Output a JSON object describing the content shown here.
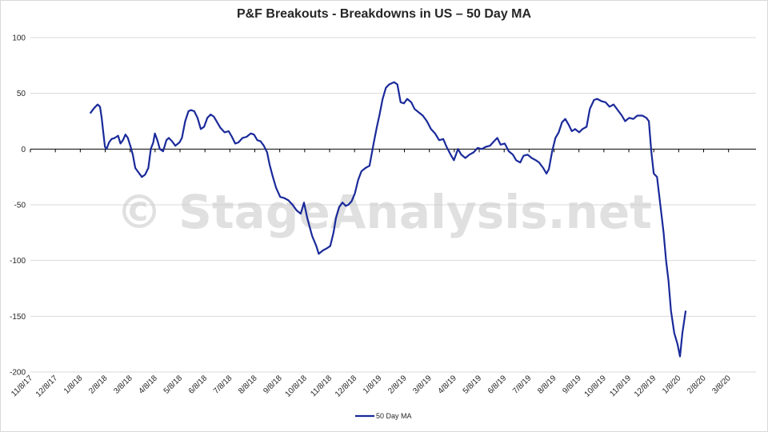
{
  "watermark": "© StageAnalysis.net",
  "colors": {
    "line": "#1a2a9a",
    "grid": "#d9d9d9",
    "zero_axis": "#000000"
  },
  "chart_data": {
    "type": "line",
    "title": "P&F Breakouts - Breakdowns in US – 50 Day MA",
    "xlabel": "",
    "ylabel": "",
    "ylim": [
      -200,
      100
    ],
    "yticks": [
      100,
      50,
      0,
      -50,
      -100,
      -150,
      -200
    ],
    "xticks": [
      "11/8/17",
      "12/8/17",
      "1/8/18",
      "2/8/18",
      "3/8/18",
      "4/8/18",
      "5/8/18",
      "6/8/18",
      "7/8/18",
      "8/8/18",
      "9/8/18",
      "10/8/18",
      "11/8/18",
      "12/8/18",
      "1/8/19",
      "2/8/19",
      "3/8/19",
      "4/8/19",
      "5/8/19",
      "6/8/19",
      "7/8/19",
      "8/8/19",
      "9/8/19",
      "10/8/19",
      "11/8/19",
      "12/8/19",
      "1/8/20",
      "2/8/20",
      "3/8/20"
    ],
    "grid": true,
    "legend": "bottom",
    "series": [
      {
        "name": "50 Day MA",
        "points": [
          [
            "2018-01-20",
            32
          ],
          [
            "2018-01-25",
            37
          ],
          [
            "2018-01-29",
            40
          ],
          [
            "2018-02-01",
            38
          ],
          [
            "2018-02-03",
            28
          ],
          [
            "2018-02-05",
            15
          ],
          [
            "2018-02-07",
            2
          ],
          [
            "2018-02-09",
            0
          ],
          [
            "2018-02-12",
            6
          ],
          [
            "2018-02-15",
            9
          ],
          [
            "2018-02-19",
            10
          ],
          [
            "2018-02-23",
            12
          ],
          [
            "2018-02-26",
            5
          ],
          [
            "2018-03-01",
            8
          ],
          [
            "2018-03-04",
            13
          ],
          [
            "2018-03-07",
            10
          ],
          [
            "2018-03-10",
            3
          ],
          [
            "2018-03-13",
            -5
          ],
          [
            "2018-03-16",
            -17
          ],
          [
            "2018-03-20",
            -21
          ],
          [
            "2018-03-24",
            -25
          ],
          [
            "2018-03-28",
            -23
          ],
          [
            "2018-04-01",
            -17
          ],
          [
            "2018-04-04",
            0
          ],
          [
            "2018-04-07",
            6
          ],
          [
            "2018-04-09",
            14
          ],
          [
            "2018-04-12",
            8
          ],
          [
            "2018-04-15",
            0
          ],
          [
            "2018-04-19",
            -2
          ],
          [
            "2018-04-23",
            8
          ],
          [
            "2018-04-26",
            10
          ],
          [
            "2018-04-30",
            7
          ],
          [
            "2018-05-04",
            3
          ],
          [
            "2018-05-09",
            6
          ],
          [
            "2018-05-12",
            10
          ],
          [
            "2018-05-16",
            25
          ],
          [
            "2018-05-20",
            34
          ],
          [
            "2018-05-23",
            35
          ],
          [
            "2018-05-27",
            34
          ],
          [
            "2018-05-31",
            28
          ],
          [
            "2018-06-04",
            18
          ],
          [
            "2018-06-08",
            20
          ],
          [
            "2018-06-12",
            28
          ],
          [
            "2018-06-16",
            31
          ],
          [
            "2018-06-20",
            29
          ],
          [
            "2018-06-24",
            24
          ],
          [
            "2018-06-28",
            19
          ],
          [
            "2018-07-03",
            15
          ],
          [
            "2018-07-08",
            16
          ],
          [
            "2018-07-12",
            11
          ],
          [
            "2018-07-16",
            5
          ],
          [
            "2018-07-20",
            6
          ],
          [
            "2018-07-25",
            10
          ],
          [
            "2018-07-30",
            11
          ],
          [
            "2018-08-04",
            14
          ],
          [
            "2018-08-08",
            13
          ],
          [
            "2018-08-12",
            8
          ],
          [
            "2018-08-16",
            7
          ],
          [
            "2018-08-20",
            3
          ],
          [
            "2018-08-24",
            -3
          ],
          [
            "2018-08-27",
            -14
          ],
          [
            "2018-08-31",
            -25
          ],
          [
            "2018-09-04",
            -35
          ],
          [
            "2018-09-09",
            -43
          ],
          [
            "2018-09-14",
            -44
          ],
          [
            "2018-09-19",
            -46
          ],
          [
            "2018-09-24",
            -50
          ],
          [
            "2018-09-29",
            -55
          ],
          [
            "2018-10-04",
            -58
          ],
          [
            "2018-10-08",
            -48
          ],
          [
            "2018-10-12",
            -62
          ],
          [
            "2018-10-18",
            -78
          ],
          [
            "2018-10-23",
            -87
          ],
          [
            "2018-10-26",
            -94
          ],
          [
            "2018-10-31",
            -91
          ],
          [
            "2018-11-05",
            -89
          ],
          [
            "2018-11-09",
            -87
          ],
          [
            "2018-11-13",
            -75
          ],
          [
            "2018-11-16",
            -62
          ],
          [
            "2018-11-20",
            -52
          ],
          [
            "2018-11-24",
            -48
          ],
          [
            "2018-11-28",
            -51
          ],
          [
            "2018-12-01",
            -50
          ],
          [
            "2018-12-05",
            -47
          ],
          [
            "2018-12-09",
            -40
          ],
          [
            "2018-12-13",
            -28
          ],
          [
            "2018-12-17",
            -20
          ],
          [
            "2018-12-22",
            -17
          ],
          [
            "2018-12-27",
            -15
          ],
          [
            "2019-01-01",
            5
          ],
          [
            "2019-01-05",
            20
          ],
          [
            "2019-01-08",
            30
          ],
          [
            "2019-01-12",
            45
          ],
          [
            "2019-01-16",
            55
          ],
          [
            "2019-01-20",
            58
          ],
          [
            "2019-01-26",
            60
          ],
          [
            "2019-01-30",
            58
          ],
          [
            "2019-02-03",
            42
          ],
          [
            "2019-02-07",
            41
          ],
          [
            "2019-02-11",
            45
          ],
          [
            "2019-02-16",
            42
          ],
          [
            "2019-02-20",
            36
          ],
          [
            "2019-02-25",
            33
          ],
          [
            "2019-03-02",
            30
          ],
          [
            "2019-03-07",
            25
          ],
          [
            "2019-03-12",
            18
          ],
          [
            "2019-03-17",
            14
          ],
          [
            "2019-03-22",
            8
          ],
          [
            "2019-03-27",
            9
          ],
          [
            "2019-03-31",
            2
          ],
          [
            "2019-04-05",
            -5
          ],
          [
            "2019-04-09",
            -10
          ],
          [
            "2019-04-14",
            0
          ],
          [
            "2019-04-18",
            -5
          ],
          [
            "2019-04-23",
            -8
          ],
          [
            "2019-04-28",
            -5
          ],
          [
            "2019-05-03",
            -3
          ],
          [
            "2019-05-08",
            1
          ],
          [
            "2019-05-13",
            0
          ],
          [
            "2019-05-18",
            2
          ],
          [
            "2019-05-23",
            3
          ],
          [
            "2019-05-28",
            7
          ],
          [
            "2019-06-01",
            10
          ],
          [
            "2019-06-05",
            4
          ],
          [
            "2019-06-10",
            5
          ],
          [
            "2019-06-15",
            -2
          ],
          [
            "2019-06-20",
            -5
          ],
          [
            "2019-06-24",
            -10
          ],
          [
            "2019-06-29",
            -12
          ],
          [
            "2019-07-03",
            -6
          ],
          [
            "2019-07-08",
            -5
          ],
          [
            "2019-07-13",
            -8
          ],
          [
            "2019-07-18",
            -10
          ],
          [
            "2019-07-22",
            -12
          ],
          [
            "2019-07-27",
            -17
          ],
          [
            "2019-07-31",
            -22
          ],
          [
            "2019-08-03",
            -18
          ],
          [
            "2019-08-07",
            -2
          ],
          [
            "2019-08-11",
            10
          ],
          [
            "2019-08-15",
            15
          ],
          [
            "2019-08-19",
            24
          ],
          [
            "2019-08-23",
            27
          ],
          [
            "2019-08-27",
            22
          ],
          [
            "2019-08-31",
            16
          ],
          [
            "2019-09-04",
            18
          ],
          [
            "2019-09-09",
            15
          ],
          [
            "2019-09-13",
            18
          ],
          [
            "2019-09-18",
            20
          ],
          [
            "2019-09-22",
            36
          ],
          [
            "2019-09-27",
            44
          ],
          [
            "2019-10-01",
            45
          ],
          [
            "2019-10-06",
            43
          ],
          [
            "2019-10-11",
            42
          ],
          [
            "2019-10-16",
            38
          ],
          [
            "2019-10-21",
            40
          ],
          [
            "2019-10-26",
            35
          ],
          [
            "2019-10-31",
            30
          ],
          [
            "2019-11-04",
            25
          ],
          [
            "2019-11-09",
            28
          ],
          [
            "2019-11-14",
            27
          ],
          [
            "2019-11-19",
            30
          ],
          [
            "2019-11-25",
            30
          ],
          [
            "2019-11-30",
            28
          ],
          [
            "2019-12-03",
            25
          ],
          [
            "2019-12-06",
            -2
          ],
          [
            "2019-12-09",
            -22
          ],
          [
            "2019-12-13",
            -25
          ],
          [
            "2019-12-17",
            -50
          ],
          [
            "2019-12-21",
            -75
          ],
          [
            "2019-12-24",
            -100
          ],
          [
            "2019-12-27",
            -118
          ],
          [
            "2019-12-30",
            -145
          ],
          [
            "2020-01-03",
            -165
          ],
          [
            "2020-01-07",
            -175
          ],
          [
            "2020-01-10",
            -186
          ],
          [
            "2020-01-13",
            -165
          ],
          [
            "2020-01-17",
            -145
          ]
        ]
      }
    ]
  },
  "legend": {
    "label": "50 Day MA"
  }
}
